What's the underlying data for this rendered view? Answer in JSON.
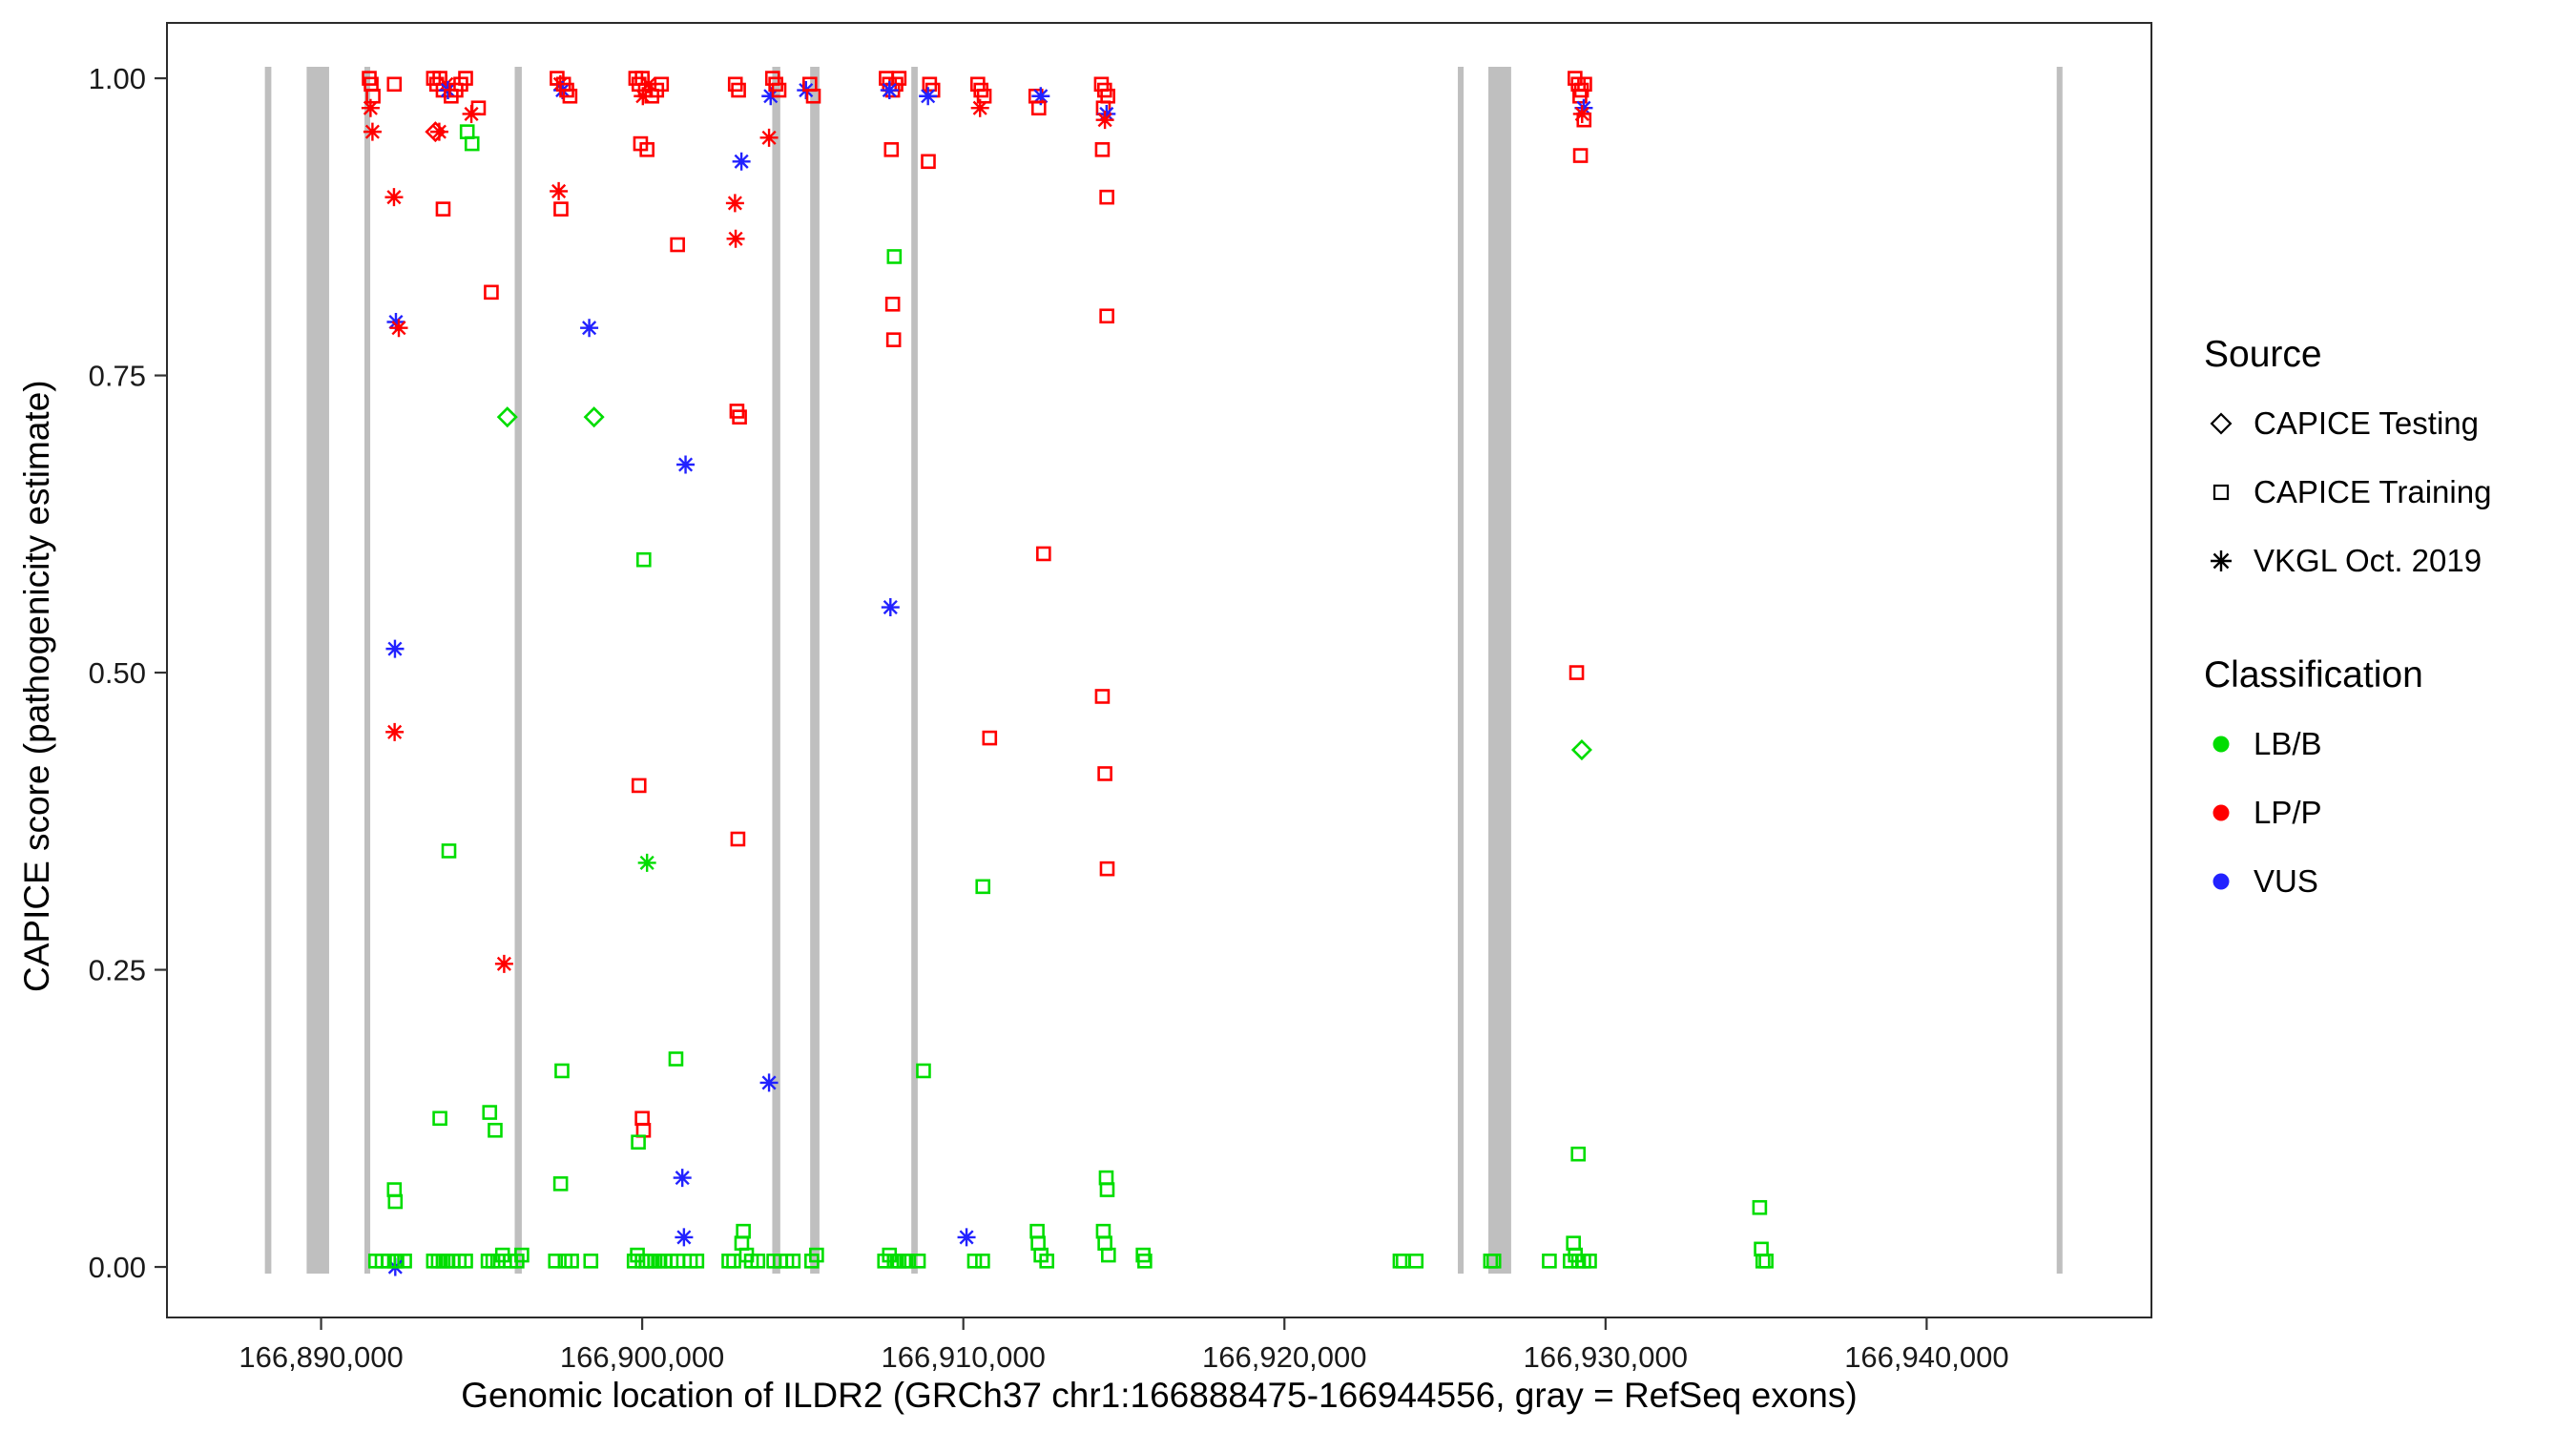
{
  "chart_data": {
    "type": "scatter",
    "title": "",
    "xlabel": "Genomic location of ILDR2 (GRCh37 chr1:166888475-166944556, gray = RefSeq exons)",
    "ylabel": "CAPICE score (pathogenicity estimate)",
    "xlim": [
      166885200,
      166947000
    ],
    "ylim": [
      -0.0425,
      1.0466
    ],
    "grid": false,
    "legend_position": "right",
    "exon_color": "#BFBFBF",
    "colors": {
      "LB": "#00DD00",
      "LP": "#FF0000",
      "VUS": "#2222FF"
    },
    "x_ticks": [
      {
        "value": 166890000,
        "label": "166,890,000"
      },
      {
        "value": 166900000,
        "label": "166,900,000"
      },
      {
        "value": 166910000,
        "label": "166,910,000"
      },
      {
        "value": 166920000,
        "label": "166,920,000"
      },
      {
        "value": 166930000,
        "label": "166,930,000"
      },
      {
        "value": 166940000,
        "label": "166,940,000"
      }
    ],
    "y_ticks": [
      {
        "value": 0.0,
        "label": "0.00"
      },
      {
        "value": 0.25,
        "label": "0.25"
      },
      {
        "value": 0.5,
        "label": "0.50"
      },
      {
        "value": 0.75,
        "label": "0.75"
      },
      {
        "value": 1.0,
        "label": "1.00"
      }
    ],
    "exons": [
      [
        166888250,
        166888450
      ],
      [
        166889550,
        166890250
      ],
      [
        166891350,
        166891530
      ],
      [
        166896030,
        166896250
      ],
      [
        166904050,
        166904300
      ],
      [
        166905230,
        166905520
      ],
      [
        166908380,
        166908580
      ],
      [
        166925400,
        166925580
      ],
      [
        166926350,
        166927060
      ],
      [
        166944050,
        166944230
      ]
    ],
    "points": [
      [
        166891500,
        1.0,
        "S",
        "LP"
      ],
      [
        166891560,
        0.995,
        "S",
        "LP"
      ],
      [
        166891620,
        0.985,
        "S",
        "LP"
      ],
      [
        166891540,
        0.975,
        "A",
        "LP"
      ],
      [
        166891600,
        0.955,
        "A",
        "LP"
      ],
      [
        166892280,
        0.995,
        "S",
        "LP"
      ],
      [
        166892270,
        0.9,
        "A",
        "LP"
      ],
      [
        166892330,
        0.795,
        "A",
        "VUS"
      ],
      [
        166892420,
        0.79,
        "A",
        "LP"
      ],
      [
        166892300,
        0.52,
        "A",
        "VUS"
      ],
      [
        166892290,
        0.45,
        "A",
        "LP"
      ],
      [
        166892280,
        0.065,
        "S",
        "LB"
      ],
      [
        166892310,
        0.055,
        "S",
        "LB"
      ],
      [
        166892300,
        0.005,
        "S",
        "LB"
      ],
      [
        166892310,
        0.0,
        "A",
        "VUS"
      ],
      [
        166892360,
        0.005,
        "S",
        "LB"
      ],
      [
        166891700,
        0.005,
        "S",
        "LB"
      ],
      [
        166891900,
        0.005,
        "S",
        "LB"
      ],
      [
        166892100,
        0.005,
        "S",
        "LB"
      ],
      [
        166892600,
        0.005,
        "S",
        "LB"
      ],
      [
        166893500,
        0.005,
        "S",
        "LB"
      ],
      [
        166893650,
        0.005,
        "S",
        "LB"
      ],
      [
        166893800,
        0.005,
        "S",
        "LB"
      ],
      [
        166893950,
        0.005,
        "S",
        "LB"
      ],
      [
        166894100,
        0.005,
        "S",
        "LB"
      ],
      [
        166894300,
        0.005,
        "S",
        "LB"
      ],
      [
        166894500,
        0.005,
        "S",
        "LB"
      ],
      [
        166895200,
        0.005,
        "S",
        "LB"
      ],
      [
        166895350,
        0.005,
        "S",
        "LB"
      ],
      [
        166895500,
        0.005,
        "S",
        "LB"
      ],
      [
        166895650,
        0.01,
        "S",
        "LB"
      ],
      [
        166895900,
        0.005,
        "S",
        "LB"
      ],
      [
        166896100,
        0.005,
        "S",
        "LB"
      ],
      [
        166896250,
        0.01,
        "S",
        "LB"
      ],
      [
        166893500,
        1.0,
        "S",
        "LP"
      ],
      [
        166893600,
        0.995,
        "S",
        "LP"
      ],
      [
        166893700,
        1.0,
        "S",
        "LP"
      ],
      [
        166893800,
        0.99,
        "S",
        "LP"
      ],
      [
        166893900,
        0.995,
        "A",
        "LP"
      ],
      [
        166893950,
        0.99,
        "A",
        "VUS"
      ],
      [
        166894050,
        0.985,
        "S",
        "LP"
      ],
      [
        166894200,
        0.99,
        "S",
        "LP"
      ],
      [
        166894350,
        0.995,
        "S",
        "LP"
      ],
      [
        166894500,
        1.0,
        "S",
        "LP"
      ],
      [
        166894900,
        0.975,
        "S",
        "LP"
      ],
      [
        166893560,
        0.955,
        "D",
        "LP"
      ],
      [
        166893680,
        0.955,
        "A",
        "LP"
      ],
      [
        166894680,
        0.97,
        "A",
        "LP"
      ],
      [
        166894550,
        0.955,
        "S",
        "LB"
      ],
      [
        166894700,
        0.945,
        "S",
        "LB"
      ],
      [
        166893800,
        0.89,
        "S",
        "LP"
      ],
      [
        166893980,
        0.35,
        "S",
        "LB"
      ],
      [
        166893700,
        0.125,
        "S",
        "LB"
      ],
      [
        166895300,
        0.82,
        "S",
        "LP"
      ],
      [
        166895250,
        0.13,
        "S",
        "LB"
      ],
      [
        166895420,
        0.115,
        "S",
        "LB"
      ],
      [
        166895800,
        0.715,
        "D",
        "LB"
      ],
      [
        166895700,
        0.255,
        "A",
        "LP"
      ],
      [
        166897350,
        1.0,
        "S",
        "LP"
      ],
      [
        166897450,
        0.995,
        "A",
        "LP"
      ],
      [
        166897520,
        0.99,
        "A",
        "VUS"
      ],
      [
        166897550,
        0.995,
        "S",
        "LP"
      ],
      [
        166897650,
        0.99,
        "S",
        "LP"
      ],
      [
        166897750,
        0.985,
        "S",
        "LP"
      ],
      [
        166897400,
        0.905,
        "A",
        "LP"
      ],
      [
        166897470,
        0.89,
        "S",
        "LP"
      ],
      [
        166898350,
        0.79,
        "A",
        "VUS"
      ],
      [
        166898500,
        0.715,
        "D",
        "LB"
      ],
      [
        166897500,
        0.165,
        "S",
        "LB"
      ],
      [
        166897460,
        0.07,
        "S",
        "LB"
      ],
      [
        166897300,
        0.005,
        "S",
        "LB"
      ],
      [
        166897600,
        0.005,
        "S",
        "LB"
      ],
      [
        166897800,
        0.005,
        "S",
        "LB"
      ],
      [
        166898400,
        0.005,
        "S",
        "LB"
      ],
      [
        166899800,
        1.0,
        "S",
        "LP"
      ],
      [
        166899900,
        0.995,
        "S",
        "LP"
      ],
      [
        166900000,
        1.0,
        "S",
        "LP"
      ],
      [
        166900100,
        0.99,
        "S",
        "LP"
      ],
      [
        166900200,
        0.995,
        "A",
        "LP"
      ],
      [
        166900020,
        0.985,
        "A",
        "LP"
      ],
      [
        166900300,
        0.985,
        "S",
        "LP"
      ],
      [
        166900450,
        0.99,
        "S",
        "LP"
      ],
      [
        166900600,
        0.995,
        "S",
        "LP"
      ],
      [
        166899950,
        0.945,
        "S",
        "LP"
      ],
      [
        166900150,
        0.94,
        "S",
        "LP"
      ],
      [
        166900050,
        0.595,
        "S",
        "LB"
      ],
      [
        166899900,
        0.405,
        "S",
        "LP"
      ],
      [
        166900150,
        0.34,
        "A",
        "LB"
      ],
      [
        166900000,
        0.125,
        "S",
        "LP"
      ],
      [
        166900040,
        0.115,
        "S",
        "LP"
      ],
      [
        166899880,
        0.105,
        "S",
        "LB"
      ],
      [
        166901050,
        0.175,
        "S",
        "LB"
      ],
      [
        166901350,
        0.675,
        "A",
        "VUS"
      ],
      [
        166901250,
        0.075,
        "A",
        "VUS"
      ],
      [
        166901300,
        0.025,
        "A",
        "VUS"
      ],
      [
        166901100,
        0.86,
        "S",
        "LP"
      ],
      [
        166899750,
        0.005,
        "S",
        "LB"
      ],
      [
        166899850,
        0.01,
        "S",
        "LB"
      ],
      [
        166900000,
        0.005,
        "S",
        "LB"
      ],
      [
        166900120,
        0.005,
        "S",
        "LB"
      ],
      [
        166900250,
        0.005,
        "S",
        "LB"
      ],
      [
        166900400,
        0.005,
        "S",
        "LB"
      ],
      [
        166900550,
        0.005,
        "S",
        "LB"
      ],
      [
        166900700,
        0.005,
        "S",
        "LB"
      ],
      [
        166900900,
        0.005,
        "S",
        "LB"
      ],
      [
        166901100,
        0.005,
        "S",
        "LB"
      ],
      [
        166901500,
        0.005,
        "S",
        "LB"
      ],
      [
        166901700,
        0.005,
        "S",
        "LB"
      ],
      [
        166902900,
        0.995,
        "S",
        "LP"
      ],
      [
        166903000,
        0.99,
        "S",
        "LP"
      ],
      [
        166902890,
        0.895,
        "A",
        "LP"
      ],
      [
        166902910,
        0.865,
        "A",
        "LP"
      ],
      [
        166903090,
        0.93,
        "A",
        "VUS"
      ],
      [
        166902950,
        0.72,
        "S",
        "LP"
      ],
      [
        166903030,
        0.715,
        "S",
        "LP"
      ],
      [
        166902980,
        0.36,
        "S",
        "LP"
      ],
      [
        166903950,
        0.155,
        "A",
        "VUS"
      ],
      [
        166902700,
        0.005,
        "S",
        "LB"
      ],
      [
        166902850,
        0.005,
        "S",
        "LB"
      ],
      [
        166903100,
        0.02,
        "S",
        "LB"
      ],
      [
        166903150,
        0.03,
        "S",
        "LB"
      ],
      [
        166903250,
        0.01,
        "S",
        "LB"
      ],
      [
        166903400,
        0.005,
        "S",
        "LB"
      ],
      [
        166903600,
        0.005,
        "S",
        "LB"
      ],
      [
        166903950,
        0.95,
        "A",
        "LP"
      ],
      [
        166904000,
        0.985,
        "A",
        "VUS"
      ],
      [
        166904060,
        1.0,
        "S",
        "LP"
      ],
      [
        166904160,
        0.995,
        "S",
        "LP"
      ],
      [
        166904260,
        0.99,
        "S",
        "LP"
      ],
      [
        166905100,
        0.99,
        "A",
        "VUS"
      ],
      [
        166905220,
        0.995,
        "S",
        "LP"
      ],
      [
        166905330,
        0.985,
        "S",
        "LP"
      ],
      [
        166904100,
        0.005,
        "S",
        "LB"
      ],
      [
        166904300,
        0.005,
        "S",
        "LB"
      ],
      [
        166904500,
        0.005,
        "S",
        "LB"
      ],
      [
        166904700,
        0.005,
        "S",
        "LB"
      ],
      [
        166905280,
        0.005,
        "S",
        "LB"
      ],
      [
        166905430,
        0.01,
        "S",
        "LB"
      ],
      [
        166907600,
        1.0,
        "S",
        "LP"
      ],
      [
        166907700,
        0.995,
        "S",
        "LP"
      ],
      [
        166907800,
        0.99,
        "S",
        "LP"
      ],
      [
        166907900,
        0.995,
        "S",
        "LP"
      ],
      [
        166908000,
        1.0,
        "S",
        "LP"
      ],
      [
        166907700,
        0.99,
        "A",
        "VUS"
      ],
      [
        166907760,
        0.94,
        "S",
        "LP"
      ],
      [
        166907850,
        0.85,
        "S",
        "LB"
      ],
      [
        166907800,
        0.81,
        "S",
        "LP"
      ],
      [
        166907830,
        0.78,
        "S",
        "LP"
      ],
      [
        166907730,
        0.555,
        "A",
        "VUS"
      ],
      [
        166908950,
        0.995,
        "S",
        "LP"
      ],
      [
        166909050,
        0.99,
        "S",
        "LP"
      ],
      [
        166908900,
        0.985,
        "A",
        "VUS"
      ],
      [
        166908910,
        0.93,
        "S",
        "LP"
      ],
      [
        166908760,
        0.165,
        "S",
        "LB"
      ],
      [
        166907550,
        0.005,
        "S",
        "LB"
      ],
      [
        166907700,
        0.01,
        "S",
        "LB"
      ],
      [
        166907850,
        0.005,
        "S",
        "LB"
      ],
      [
        166908000,
        0.005,
        "S",
        "LB"
      ],
      [
        166908150,
        0.005,
        "S",
        "LB"
      ],
      [
        166908300,
        0.005,
        "S",
        "LB"
      ],
      [
        166908600,
        0.005,
        "S",
        "LB"
      ],
      [
        166910450,
        0.995,
        "S",
        "LP"
      ],
      [
        166910550,
        0.99,
        "S",
        "LP"
      ],
      [
        166910650,
        0.985,
        "S",
        "LP"
      ],
      [
        166910520,
        0.975,
        "A",
        "LP"
      ],
      [
        166910820,
        0.445,
        "S",
        "LP"
      ],
      [
        166910610,
        0.32,
        "S",
        "LB"
      ],
      [
        166910100,
        0.025,
        "A",
        "VUS"
      ],
      [
        166910350,
        0.005,
        "S",
        "LB"
      ],
      [
        166910600,
        0.005,
        "S",
        "LB"
      ],
      [
        166912260,
        0.985,
        "S",
        "LP"
      ],
      [
        166912410,
        0.985,
        "A",
        "VUS"
      ],
      [
        166912350,
        0.975,
        "S",
        "LP"
      ],
      [
        166912500,
        0.6,
        "S",
        "LP"
      ],
      [
        166912300,
        0.03,
        "S",
        "LB"
      ],
      [
        166912330,
        0.02,
        "S",
        "LB"
      ],
      [
        166912420,
        0.01,
        "S",
        "LB"
      ],
      [
        166912600,
        0.005,
        "S",
        "LB"
      ],
      [
        166914300,
        0.995,
        "S",
        "LP"
      ],
      [
        166914400,
        0.99,
        "S",
        "LP"
      ],
      [
        166914500,
        0.985,
        "S",
        "LP"
      ],
      [
        166914360,
        0.975,
        "S",
        "LP"
      ],
      [
        166914460,
        0.97,
        "A",
        "VUS"
      ],
      [
        166914410,
        0.965,
        "A",
        "LP"
      ],
      [
        166914330,
        0.94,
        "S",
        "LP"
      ],
      [
        166914470,
        0.9,
        "S",
        "LP"
      ],
      [
        166914470,
        0.8,
        "S",
        "LP"
      ],
      [
        166914330,
        0.48,
        "S",
        "LP"
      ],
      [
        166914410,
        0.415,
        "S",
        "LP"
      ],
      [
        166914480,
        0.335,
        "S",
        "LP"
      ],
      [
        166914450,
        0.075,
        "S",
        "LB"
      ],
      [
        166914480,
        0.065,
        "S",
        "LB"
      ],
      [
        166914360,
        0.03,
        "S",
        "LB"
      ],
      [
        166914410,
        0.02,
        "S",
        "LB"
      ],
      [
        166914520,
        0.01,
        "S",
        "LB"
      ],
      [
        166915600,
        0.01,
        "S",
        "LB"
      ],
      [
        166915650,
        0.005,
        "S",
        "LB"
      ],
      [
        166923600,
        0.005,
        "S",
        "LB"
      ],
      [
        166923700,
        0.005,
        "S",
        "LB"
      ],
      [
        166924100,
        0.005,
        "S",
        "LB"
      ],
      [
        166926420,
        0.005,
        "S",
        "LB"
      ],
      [
        166926520,
        0.005,
        "S",
        "LB"
      ],
      [
        166928250,
        0.005,
        "S",
        "LB"
      ],
      [
        166929050,
        1.0,
        "S",
        "LP"
      ],
      [
        166929150,
        0.995,
        "S",
        "LP"
      ],
      [
        166929250,
        0.99,
        "S",
        "LP"
      ],
      [
        166929350,
        0.995,
        "S",
        "LP"
      ],
      [
        166929200,
        0.985,
        "S",
        "LP"
      ],
      [
        166929320,
        0.975,
        "A",
        "VUS"
      ],
      [
        166929270,
        0.97,
        "A",
        "LP"
      ],
      [
        166929330,
        0.965,
        "S",
        "LP"
      ],
      [
        166929220,
        0.935,
        "S",
        "LP"
      ],
      [
        166929100,
        0.5,
        "S",
        "LP"
      ],
      [
        166929260,
        0.435,
        "D",
        "LB"
      ],
      [
        166929150,
        0.095,
        "S",
        "LB"
      ],
      [
        166928900,
        0.005,
        "S",
        "LB"
      ],
      [
        166929000,
        0.02,
        "S",
        "LB"
      ],
      [
        166929060,
        0.01,
        "S",
        "LB"
      ],
      [
        166929160,
        0.005,
        "S",
        "LB"
      ],
      [
        166929320,
        0.005,
        "S",
        "LB"
      ],
      [
        166929500,
        0.005,
        "S",
        "LB"
      ],
      [
        166934800,
        0.05,
        "S",
        "LB"
      ],
      [
        166934850,
        0.015,
        "S",
        "LB"
      ],
      [
        166934900,
        0.005,
        "S",
        "LB"
      ],
      [
        166935000,
        0.005,
        "S",
        "LB"
      ]
    ]
  },
  "legend": {
    "source_title": "Source",
    "source_items": [
      {
        "label": "CAPICE Testing",
        "shape": "diamond"
      },
      {
        "label": "CAPICE Training",
        "shape": "square"
      },
      {
        "label": "VKGL Oct. 2019",
        "shape": "asterisk"
      }
    ],
    "classification_title": "Classification",
    "classification_items": [
      {
        "label": "LB/B",
        "color": "#00DD00"
      },
      {
        "label": "LP/P",
        "color": "#FF0000"
      },
      {
        "label": "VUS",
        "color": "#2222FF"
      }
    ]
  }
}
